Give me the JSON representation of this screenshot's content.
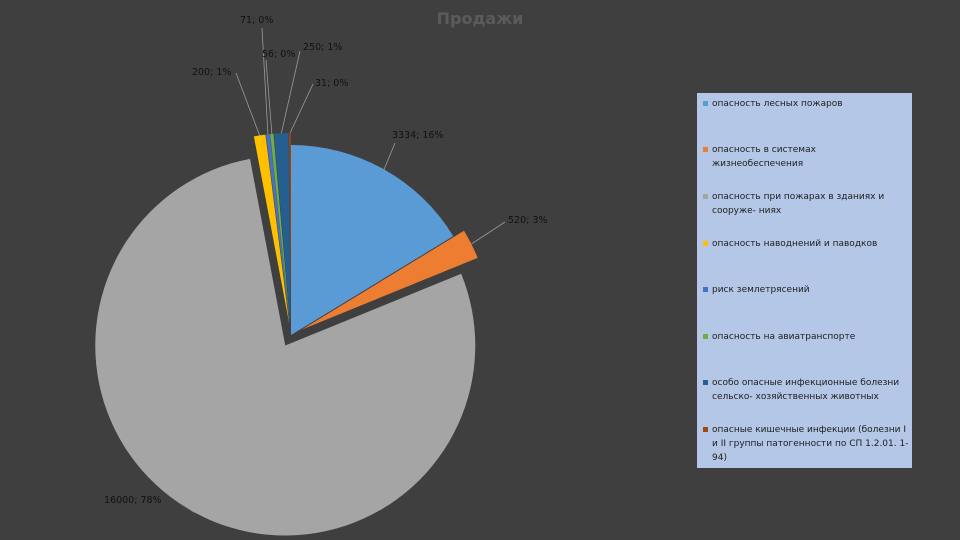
{
  "chart_data": {
    "type": "pie",
    "title": "Продажи",
    "series": [
      {
        "name": "опасность лесных пожаров",
        "value": 3334,
        "label": "3334; 16%",
        "color": "#5b9bd5",
        "exploded": false
      },
      {
        "name": "опасность в системах жизнеобеспечения",
        "value": 520,
        "label": "520; 3%",
        "color": "#ed7d31",
        "exploded": true
      },
      {
        "name": "опасность при пожарах в зданиях и сооруже- ниях",
        "value": 16000,
        "label": "16000; 78%",
        "color": "#a5a5a5",
        "exploded": true
      },
      {
        "name": "опасность наводнений и паводков",
        "value": 200,
        "label": "200; 1%",
        "color": "#ffc000",
        "exploded": true
      },
      {
        "name": "риск землетрясений",
        "value": 71,
        "label": "71; 0%",
        "color": "#4472c4",
        "exploded": true
      },
      {
        "name": "опасность на авиатранспорте",
        "value": 56,
        "label": "56; 0%",
        "color": "#70ad47",
        "exploded": true
      },
      {
        "name": "особо опасные инфекционные болезни сельско- хозяйственных животных",
        "value": 250,
        "label": "250; 1%",
        "color": "#255e91",
        "exploded": true
      },
      {
        "name": "опасные кишечные инфекции (болезни I и II группы патогенности по СП 1.2.01. 1-94)",
        "value": 31,
        "label": "31; 0%",
        "color": "#9e480e",
        "exploded": true
      }
    ],
    "legend_position": "right"
  }
}
